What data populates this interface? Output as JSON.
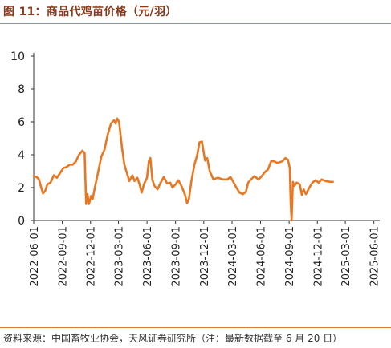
{
  "figure": {
    "title": "图 11：商品代鸡苗价格（元/羽）",
    "source": "资料来源：中国畜牧业协会，天风证券研究所（注：最新数据截至 6 月 20 日）"
  },
  "colors": {
    "accent": "#e07a2f",
    "title": "#8a3a1c",
    "line": "#e87722",
    "axis": "#333333"
  },
  "chart_data": {
    "type": "line",
    "title": "",
    "xlabel": "",
    "ylabel": "",
    "ylim": [
      0,
      10
    ],
    "yticks": [
      0,
      2,
      4,
      6,
      8,
      10
    ],
    "xlim": [
      "2022-06-01",
      "2025-06-20"
    ],
    "xticks": [
      "2022-06-01",
      "2022-09-01",
      "2022-12-01",
      "2023-03-01",
      "2023-06-01",
      "2023-09-01",
      "2023-12-01",
      "2024-03-01",
      "2024-06-01",
      "2024-09-01",
      "2024-12-01",
      "2025-03-01",
      "2025-06-01"
    ],
    "grid": false,
    "legend": "none",
    "series": [
      {
        "name": "",
        "points": [
          [
            "2022-06-01",
            2.7
          ],
          [
            "2022-06-10",
            2.65
          ],
          [
            "2022-06-18",
            2.5
          ],
          [
            "2022-06-25",
            2.0
          ],
          [
            "2022-07-01",
            1.65
          ],
          [
            "2022-07-08",
            1.8
          ],
          [
            "2022-07-15",
            2.2
          ],
          [
            "2022-07-25",
            2.3
          ],
          [
            "2022-08-05",
            2.75
          ],
          [
            "2022-08-15",
            2.6
          ],
          [
            "2022-08-25",
            2.9
          ],
          [
            "2022-09-05",
            3.2
          ],
          [
            "2022-09-15",
            3.25
          ],
          [
            "2022-09-25",
            3.4
          ],
          [
            "2022-10-05",
            3.4
          ],
          [
            "2022-10-15",
            3.6
          ],
          [
            "2022-10-25",
            4.0
          ],
          [
            "2022-11-05",
            4.25
          ],
          [
            "2022-11-12",
            4.1
          ],
          [
            "2022-11-17",
            1.0
          ],
          [
            "2022-11-21",
            1.6
          ],
          [
            "2022-11-26",
            1.0
          ],
          [
            "2022-12-03",
            1.5
          ],
          [
            "2022-12-08",
            1.3
          ],
          [
            "2022-12-15",
            2.0
          ],
          [
            "2022-12-25",
            2.9
          ],
          [
            "2023-01-05",
            3.9
          ],
          [
            "2023-01-15",
            4.3
          ],
          [
            "2023-01-25",
            5.2
          ],
          [
            "2023-02-05",
            5.9
          ],
          [
            "2023-02-15",
            6.1
          ],
          [
            "2023-02-20",
            5.9
          ],
          [
            "2023-02-25",
            6.2
          ],
          [
            "2023-03-03",
            6.0
          ],
          [
            "2023-03-12",
            4.5
          ],
          [
            "2023-03-20",
            3.4
          ],
          [
            "2023-03-28",
            2.9
          ],
          [
            "2023-04-05",
            2.4
          ],
          [
            "2023-04-15",
            2.75
          ],
          [
            "2023-04-22",
            2.4
          ],
          [
            "2023-05-01",
            2.6
          ],
          [
            "2023-05-08",
            2.2
          ],
          [
            "2023-05-15",
            1.7
          ],
          [
            "2023-05-22",
            2.2
          ],
          [
            "2023-06-01",
            2.6
          ],
          [
            "2023-06-07",
            3.6
          ],
          [
            "2023-06-12",
            3.8
          ],
          [
            "2023-06-18",
            2.5
          ],
          [
            "2023-06-25",
            2.1
          ],
          [
            "2023-07-05",
            1.9
          ],
          [
            "2023-07-15",
            2.3
          ],
          [
            "2023-07-25",
            2.65
          ],
          [
            "2023-08-05",
            2.25
          ],
          [
            "2023-08-15",
            2.3
          ],
          [
            "2023-08-22",
            2.0
          ],
          [
            "2023-09-01",
            2.2
          ],
          [
            "2023-09-10",
            2.45
          ],
          [
            "2023-09-20",
            2.1
          ],
          [
            "2023-10-01",
            1.6
          ],
          [
            "2023-10-08",
            1.05
          ],
          [
            "2023-10-14",
            1.3
          ],
          [
            "2023-10-22",
            2.4
          ],
          [
            "2023-11-01",
            3.4
          ],
          [
            "2023-11-10",
            4.0
          ],
          [
            "2023-11-17",
            4.75
          ],
          [
            "2023-11-25",
            4.8
          ],
          [
            "2023-12-05",
            3.65
          ],
          [
            "2023-12-12",
            3.8
          ],
          [
            "2023-12-20",
            3.0
          ],
          [
            "2024-01-01",
            2.5
          ],
          [
            "2024-01-15",
            2.6
          ],
          [
            "2024-02-01",
            2.5
          ],
          [
            "2024-02-15",
            2.5
          ],
          [
            "2024-02-25",
            2.65
          ],
          [
            "2024-03-05",
            2.35
          ],
          [
            "2024-03-15",
            2.0
          ],
          [
            "2024-03-25",
            1.7
          ],
          [
            "2024-04-05",
            1.6
          ],
          [
            "2024-04-15",
            1.75
          ],
          [
            "2024-04-22",
            2.3
          ],
          [
            "2024-05-01",
            2.5
          ],
          [
            "2024-05-12",
            2.7
          ],
          [
            "2024-05-25",
            2.5
          ],
          [
            "2024-06-05",
            2.7
          ],
          [
            "2024-06-15",
            2.95
          ],
          [
            "2024-06-25",
            3.1
          ],
          [
            "2024-07-05",
            3.6
          ],
          [
            "2024-07-15",
            3.6
          ],
          [
            "2024-07-25",
            3.5
          ],
          [
            "2024-08-10",
            3.6
          ],
          [
            "2024-08-20",
            3.8
          ],
          [
            "2024-08-28",
            3.7
          ],
          [
            "2024-09-03",
            3.2
          ],
          [
            "2024-09-06",
            1.0
          ],
          [
            "2024-09-09",
            0.0
          ],
          [
            "2024-09-13",
            2.35
          ],
          [
            "2024-09-18",
            2.1
          ],
          [
            "2024-09-25",
            2.3
          ],
          [
            "2024-10-05",
            2.2
          ],
          [
            "2024-10-12",
            1.55
          ],
          [
            "2024-10-18",
            1.9
          ],
          [
            "2024-10-25",
            1.6
          ],
          [
            "2024-11-05",
            2.0
          ],
          [
            "2024-11-15",
            2.3
          ],
          [
            "2024-11-25",
            2.45
          ],
          [
            "2024-12-05",
            2.3
          ],
          [
            "2024-12-15",
            2.5
          ],
          [
            "2024-12-28",
            2.4
          ],
          [
            "2025-01-10",
            2.35
          ],
          [
            "2025-01-20",
            2.35
          ]
        ]
      }
    ]
  }
}
